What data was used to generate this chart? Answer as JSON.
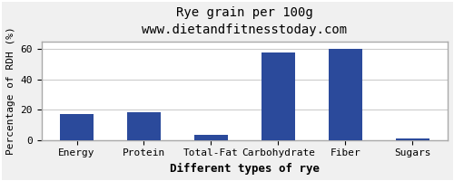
{
  "categories": [
    "Energy",
    "Protein",
    "Total-Fat",
    "Carbohydrate",
    "Fiber",
    "Sugars"
  ],
  "values": [
    17,
    18.5,
    3.5,
    58,
    60,
    1
  ],
  "bar_color": "#2b4a9b",
  "title": "Rye grain per 100g",
  "subtitle": "www.dietandfitnesstoday.com",
  "xlabel": "Different types of rye",
  "ylabel": "Percentage of RDH (%)",
  "ylim": [
    0,
    65
  ],
  "yticks": [
    0,
    20,
    40,
    60
  ],
  "background_color": "#f0f0f0",
  "plot_bg_color": "#ffffff",
  "title_fontsize": 10,
  "subtitle_fontsize": 9,
  "xlabel_fontsize": 9,
  "ylabel_fontsize": 8,
  "tick_fontsize": 8,
  "border_color": "#aaaaaa"
}
